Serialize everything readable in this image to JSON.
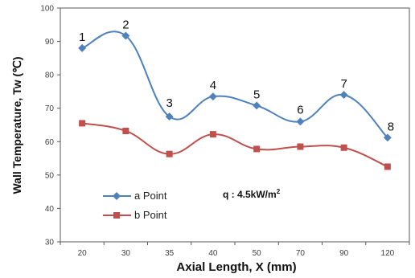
{
  "chart_data": {
    "type": "line",
    "categories": [
      "20",
      "30",
      "35",
      "40",
      "50",
      "70",
      "90",
      "120"
    ],
    "ylim": [
      30,
      100
    ],
    "yticks": [
      "30",
      "40",
      "50",
      "60",
      "70",
      "80",
      "90",
      "100"
    ],
    "xlabel": "Axial Length, X (mm)",
    "ylabel": "Wall Temperature, Tw (℃)",
    "grid": false,
    "legend_position": "bottom-left",
    "series": [
      {
        "name": "a Point",
        "color": "#4F81BD",
        "marker": "diamond",
        "values": [
          88,
          91.7,
          67.5,
          73.5,
          70.8,
          66,
          74,
          61.2
        ],
        "point_labels": [
          "1",
          "2",
          "3",
          "4",
          "5",
          "6",
          "7",
          "8"
        ]
      },
      {
        "name": "b Point",
        "color": "#C0504D",
        "marker": "square",
        "values": [
          65.5,
          63.2,
          56.3,
          62.2,
          57.8,
          58.5,
          58.2,
          52.5
        ]
      }
    ],
    "annotation": {
      "prefix": "q : 4.5kW/m",
      "sup": "2"
    }
  }
}
